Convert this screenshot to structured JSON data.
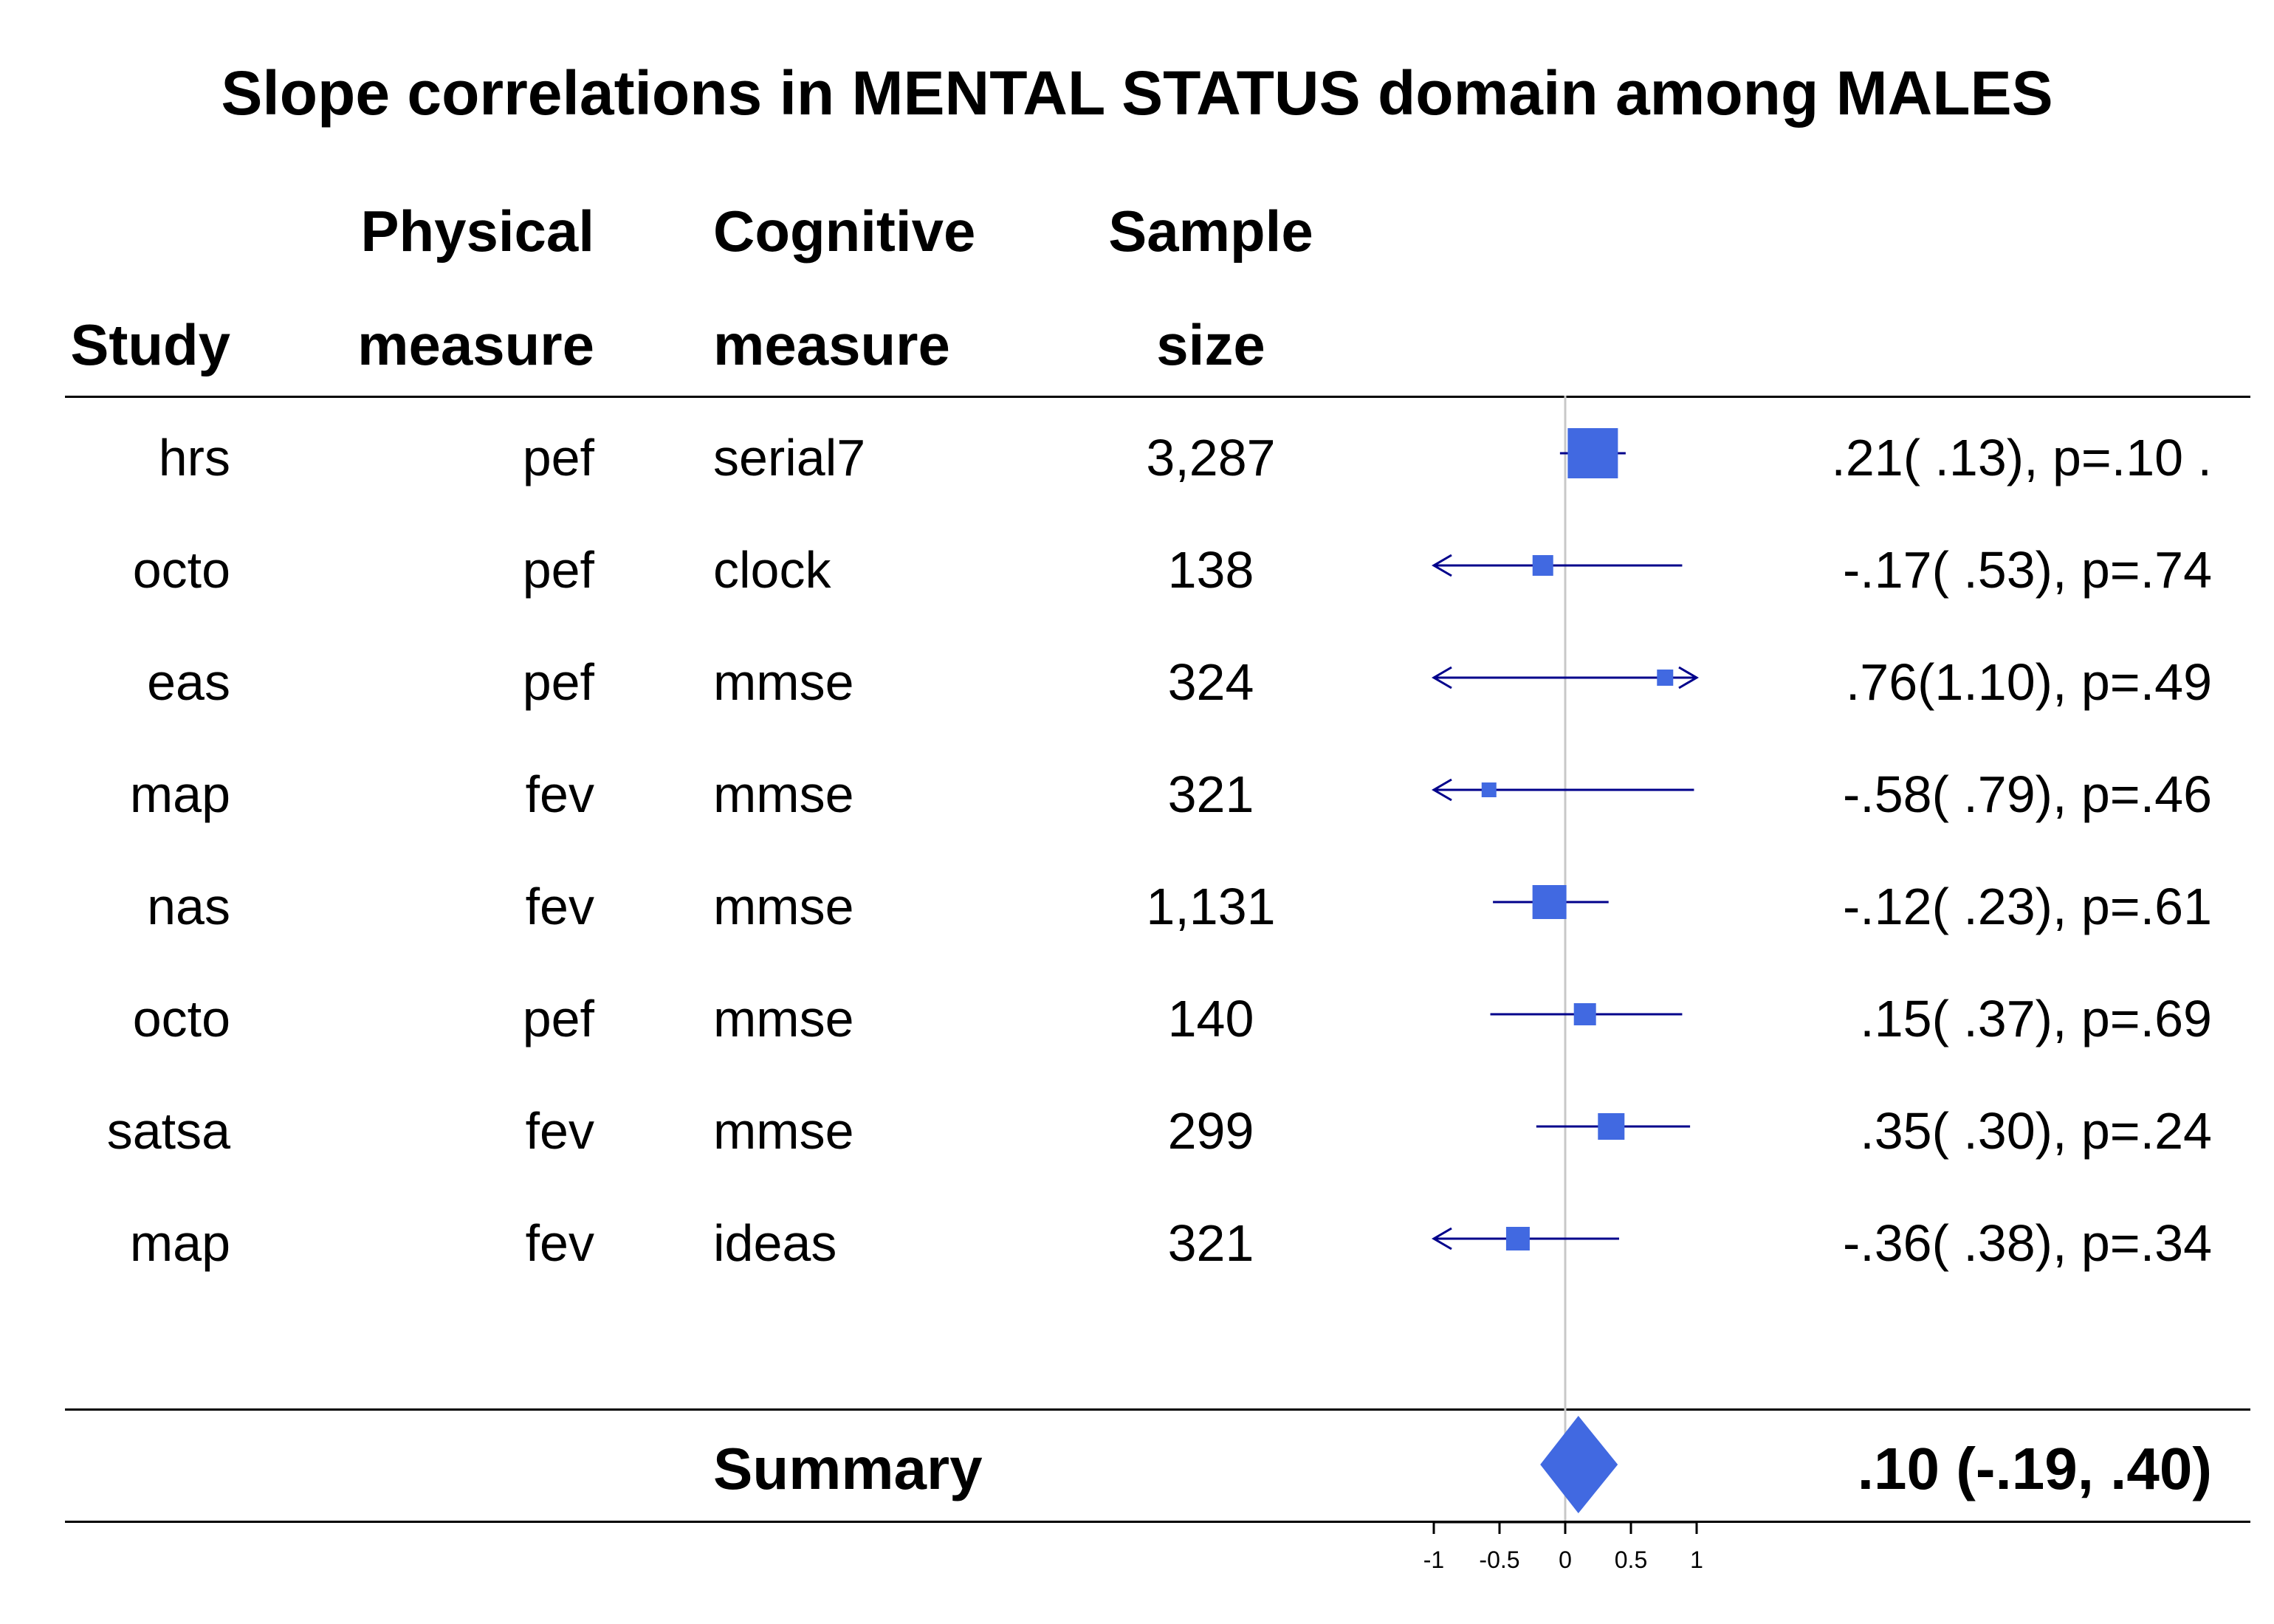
{
  "chart_data": {
    "type": "forest",
    "title": "Slope correlations in MENTAL STATUS domain among MALES",
    "columns": [
      {
        "line1": "",
        "line2": "Study"
      },
      {
        "line1": "Physical",
        "line2": "measure"
      },
      {
        "line1": "Cognitive",
        "line2": "measure"
      },
      {
        "line1": "Sample",
        "line2": "size"
      }
    ],
    "rows": [
      {
        "study": "hrs",
        "physical": "pef",
        "cognitive": "serial7",
        "n": "3,287",
        "estimate": 0.21,
        "lower": -0.04,
        "upper": 0.46,
        "label": ".21( .13), p=.10 ."
      },
      {
        "study": "octo",
        "physical": "pef",
        "cognitive": "clock",
        "n": "138",
        "estimate": -0.17,
        "lower": -1.0,
        "upper": 0.89,
        "label": "-.17( .53), p=.74"
      },
      {
        "study": "eas",
        "physical": "pef",
        "cognitive": "mmse",
        "n": "324",
        "estimate": 0.76,
        "lower": -1.0,
        "upper": 1.0,
        "label": ".76(1.10), p=.49"
      },
      {
        "study": "map",
        "physical": "fev",
        "cognitive": "mmse",
        "n": "321",
        "estimate": -0.58,
        "lower": -1.0,
        "upper": 0.98,
        "label": "-.58( .79), p=.46"
      },
      {
        "study": "nas",
        "physical": "fev",
        "cognitive": "mmse",
        "n": "1,131",
        "estimate": -0.12,
        "lower": -0.55,
        "upper": 0.33,
        "label": "-.12( .23), p=.61"
      },
      {
        "study": "octo",
        "physical": "pef",
        "cognitive": "mmse",
        "n": "140",
        "estimate": 0.15,
        "lower": -0.57,
        "upper": 0.89,
        "label": ".15( .37), p=.69"
      },
      {
        "study": "satsa",
        "physical": "fev",
        "cognitive": "mmse",
        "n": "299",
        "estimate": 0.35,
        "lower": -0.22,
        "upper": 0.95,
        "label": ".35( .30), p=.24"
      },
      {
        "study": "map",
        "physical": "fev",
        "cognitive": "ideas",
        "n": "321",
        "estimate": -0.36,
        "lower": -1.0,
        "upper": 0.41,
        "label": "-.36( .38), p=.34"
      }
    ],
    "summary": {
      "label": "Summary",
      "estimate": 0.1,
      "lower": -0.19,
      "upper": 0.4,
      "text": ".10 (-.19, .40)"
    },
    "xlim": [
      -1,
      1
    ],
    "xticks": [
      -1,
      -0.5,
      0,
      0.5,
      1
    ],
    "xtick_labels": [
      "-1",
      "-0.5",
      "0",
      "0.5",
      "1"
    ],
    "colors": {
      "marker": "#4169e1",
      "line": "#00008b",
      "reference": "#c8c8c8",
      "rule": "#000000"
    }
  }
}
